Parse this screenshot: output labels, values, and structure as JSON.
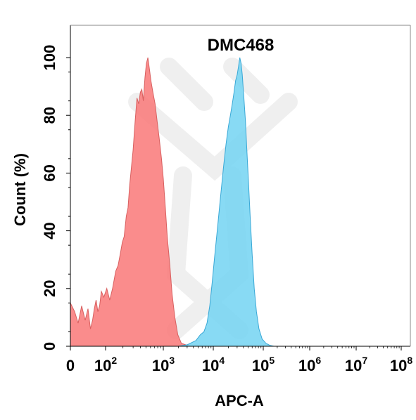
{
  "chart_data": {
    "type": "area",
    "title": "DMC468",
    "xlabel": "APC-A",
    "ylabel": "Count  (%)",
    "x_scale": "biexponential",
    "xlim": [
      0,
      100000000
    ],
    "ylim": [
      0,
      100
    ],
    "x_ticks": [
      {
        "value": 0,
        "base": "0",
        "exp": ""
      },
      {
        "value": 100,
        "base": "10",
        "exp": "2"
      },
      {
        "value": 1000,
        "base": "10",
        "exp": "3"
      },
      {
        "value": 10000,
        "base": "10",
        "exp": "4"
      },
      {
        "value": 100000,
        "base": "10",
        "exp": "5"
      },
      {
        "value": 1000000,
        "base": "10",
        "exp": "6"
      },
      {
        "value": 10000000,
        "base": "10",
        "exp": "7"
      },
      {
        "value": 100000000,
        "base": "10",
        "exp": "8"
      }
    ],
    "y_ticks": [
      0,
      20,
      40,
      60,
      80,
      100
    ],
    "grid": false,
    "legend": "none",
    "series": [
      {
        "color": "#f97878",
        "stroke": "#d86060",
        "points": [
          [
            0,
            12
          ],
          [
            0,
            15
          ],
          [
            12,
            12
          ],
          [
            22,
            8
          ],
          [
            32,
            14
          ],
          [
            42,
            9
          ],
          [
            50,
            13
          ],
          [
            57,
            6
          ],
          [
            63,
            9
          ],
          [
            68,
            13
          ],
          [
            73,
            16
          ],
          [
            78,
            12
          ],
          [
            83,
            14
          ],
          [
            88,
            19
          ],
          [
            95,
            17
          ],
          [
            105,
            20
          ],
          [
            118,
            16
          ],
          [
            132,
            20
          ],
          [
            150,
            26
          ],
          [
            165,
            28
          ],
          [
            180,
            32
          ],
          [
            195,
            36
          ],
          [
            210,
            38
          ],
          [
            228,
            45
          ],
          [
            245,
            48
          ],
          [
            262,
            56
          ],
          [
            280,
            62
          ],
          [
            300,
            68
          ],
          [
            325,
            78
          ],
          [
            350,
            86
          ],
          [
            375,
            84
          ],
          [
            400,
            88
          ],
          [
            425,
            89
          ],
          [
            450,
            85
          ],
          [
            480,
            93
          ],
          [
            510,
            98
          ],
          [
            540,
            100
          ],
          [
            575,
            96
          ],
          [
            610,
            92
          ],
          [
            660,
            88
          ],
          [
            720,
            84
          ],
          [
            780,
            78
          ],
          [
            850,
            72
          ],
          [
            930,
            65
          ],
          [
            1000,
            58
          ],
          [
            1100,
            48
          ],
          [
            1200,
            38
          ],
          [
            1350,
            28
          ],
          [
            1500,
            18
          ],
          [
            1700,
            10
          ],
          [
            1950,
            4
          ],
          [
            2300,
            1
          ],
          [
            2800,
            0.5
          ],
          [
            3400,
            0
          ]
        ]
      },
      {
        "color": "#73d3f2",
        "stroke": "#3aa8d6",
        "points": [
          [
            2000,
            0
          ],
          [
            3000,
            0.5
          ],
          [
            4500,
            2
          ],
          [
            5500,
            4
          ],
          [
            6500,
            5
          ],
          [
            7500,
            8
          ],
          [
            8500,
            14
          ],
          [
            9500,
            22
          ],
          [
            10500,
            30
          ],
          [
            12000,
            40
          ],
          [
            14000,
            52
          ],
          [
            16000,
            62
          ],
          [
            18000,
            70
          ],
          [
            20000,
            76
          ],
          [
            22000,
            80
          ],
          [
            24000,
            84
          ],
          [
            26000,
            88
          ],
          [
            28000,
            92
          ],
          [
            30000,
            94
          ],
          [
            32000,
            97
          ],
          [
            34000,
            100
          ],
          [
            36000,
            98
          ],
          [
            38000,
            94
          ],
          [
            41000,
            86
          ],
          [
            44000,
            78
          ],
          [
            47000,
            68
          ],
          [
            51000,
            56
          ],
          [
            55000,
            44
          ],
          [
            60000,
            32
          ],
          [
            66000,
            20
          ],
          [
            73000,
            12
          ],
          [
            82000,
            6
          ],
          [
            95000,
            2.5
          ],
          [
            115000,
            1
          ],
          [
            140000,
            0.3
          ],
          [
            170000,
            0
          ]
        ]
      }
    ]
  }
}
